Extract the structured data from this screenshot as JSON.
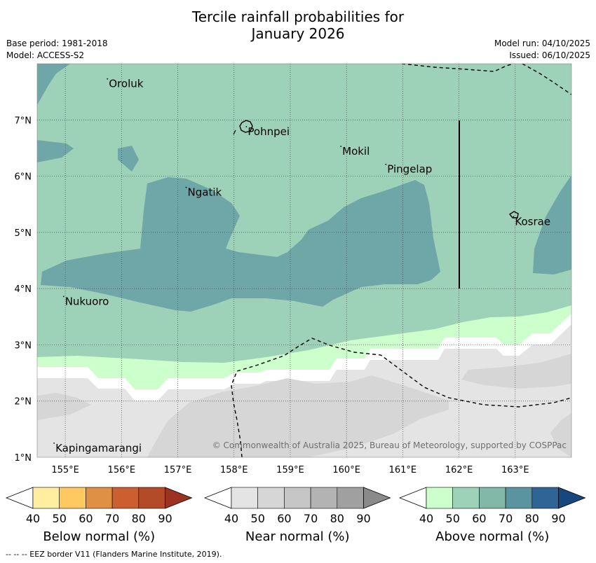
{
  "title_line1": "Tercile rainfall probabilities for",
  "title_line2": "January 2026",
  "meta_left": {
    "base_period": "Base period: 1981-2018",
    "model": "Model: ACCESS-S2"
  },
  "meta_right": {
    "model_run": "Model run: 04/10/2025",
    "issued": "Issued: 06/10/2025"
  },
  "map": {
    "lon_range": [
      154.5,
      164.0
    ],
    "lat_range": [
      1.0,
      8.0
    ],
    "lon_ticks": [
      "155°E",
      "156°E",
      "157°E",
      "158°E",
      "159°E",
      "160°E",
      "161°E",
      "162°E",
      "163°E"
    ],
    "lat_ticks": [
      "1°N",
      "2°N",
      "3°N",
      "4°N",
      "5°N",
      "6°N",
      "7°N"
    ],
    "places": [
      {
        "name": "Oroluk",
        "lon": 155.75,
        "lat": 7.73
      },
      {
        "name": "Pohnpei",
        "lon": 158.22,
        "lat": 6.88
      },
      {
        "name": "Mokil",
        "lon": 159.9,
        "lat": 6.53
      },
      {
        "name": "Pingelap",
        "lon": 160.7,
        "lat": 6.21
      },
      {
        "name": "Ngatik",
        "lon": 157.15,
        "lat": 5.8
      },
      {
        "name": "Kosrae",
        "lon": 162.97,
        "lat": 5.28
      },
      {
        "name": "Nukuoro",
        "lon": 154.97,
        "lat": 3.86
      },
      {
        "name": "Kapingamarangi",
        "lon": 154.8,
        "lat": 1.25
      }
    ],
    "copyright": "© Commonwealth of Australia 2025, Bureau of Meteorology, supported by COSPPac"
  },
  "legends": [
    {
      "label": "Below normal (%)",
      "ticks": [
        "40",
        "50",
        "60",
        "70",
        "80",
        "90"
      ],
      "colors": [
        "#ffeda0",
        "#fec960",
        "#e09045",
        "#cc5f30",
        "#b34a28",
        "#9c3320"
      ]
    },
    {
      "label": "Near normal (%)",
      "ticks": [
        "40",
        "50",
        "60",
        "70",
        "80",
        "90"
      ],
      "colors": [
        "#e4e4e4",
        "#d6d6d6",
        "#c6c6c6",
        "#b3b3b3",
        "#a0a0a0",
        "#8a8a8a"
      ]
    },
    {
      "label": "Above normal (%)",
      "ticks": [
        "40",
        "50",
        "60",
        "70",
        "80",
        "90"
      ],
      "colors": [
        "#ccffcc",
        "#9dd1b8",
        "#82b8a8",
        "#5a94a0",
        "#2e6496",
        "#18467e"
      ]
    }
  ],
  "footer": "--  --  -- EEZ border V11 (Flanders Marine Institute, 2019)."
}
